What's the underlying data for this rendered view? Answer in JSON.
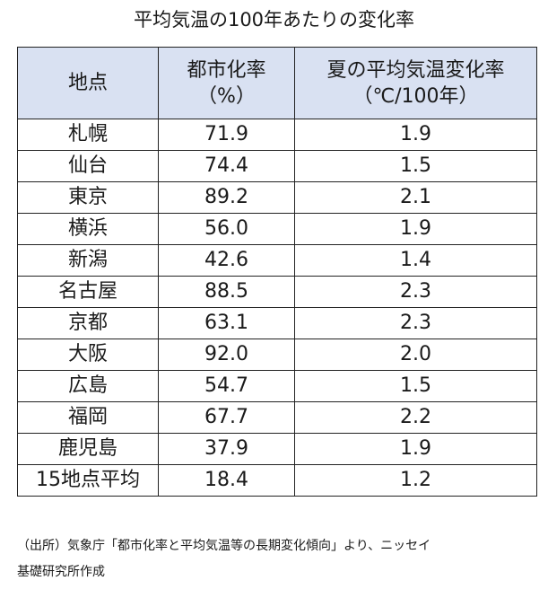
{
  "title": "平均気温の100年あたりの変化率",
  "table": {
    "headers": {
      "col1": "地点",
      "col2_line1": "都市化率",
      "col2_line2": "（%）",
      "col3_line1": "夏の平均気温変化率",
      "col3_line2": "（℃/100年）"
    },
    "rows": [
      {
        "location": "札幌",
        "urbanization": "71.9",
        "temp_change": "1.9"
      },
      {
        "location": "仙台",
        "urbanization": "74.4",
        "temp_change": "1.5"
      },
      {
        "location": "東京",
        "urbanization": "89.2",
        "temp_change": "2.1"
      },
      {
        "location": "横浜",
        "urbanization": "56.0",
        "temp_change": "1.9"
      },
      {
        "location": "新潟",
        "urbanization": "42.6",
        "temp_change": "1.4"
      },
      {
        "location": "名古屋",
        "urbanization": "88.5",
        "temp_change": "2.3"
      },
      {
        "location": "京都",
        "urbanization": "63.1",
        "temp_change": "2.3"
      },
      {
        "location": "大阪",
        "urbanization": "92.0",
        "temp_change": "2.0"
      },
      {
        "location": "広島",
        "urbanization": "54.7",
        "temp_change": "1.5"
      },
      {
        "location": "福岡",
        "urbanization": "67.7",
        "temp_change": "2.2"
      },
      {
        "location": "鹿児島",
        "urbanization": "37.9",
        "temp_change": "1.9"
      },
      {
        "location": "15地点平均",
        "urbanization": "18.4",
        "temp_change": "1.2"
      }
    ]
  },
  "source": {
    "line1": "（出所）気象庁「都市化率と平均気温等の長期変化傾向」より、ニッセイ",
    "line2": "基礎研究所作成"
  },
  "colors": {
    "header_background": "#d9e1f2",
    "border": "#222222"
  }
}
